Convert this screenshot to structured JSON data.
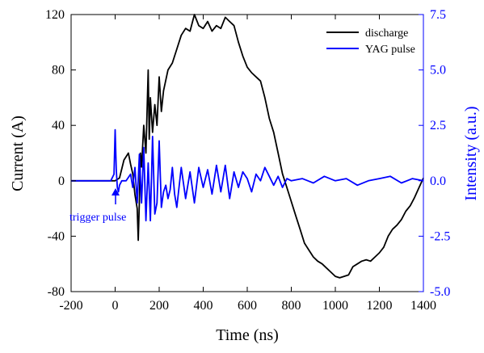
{
  "chart_data": {
    "type": "line",
    "title": "",
    "xlabel": "Time (ns)",
    "ylabel": "Current (A)",
    "y2label": "Intensity (a.u.)",
    "xlim": [
      -200,
      1400
    ],
    "ylim": [
      -80,
      120
    ],
    "y2lim": [
      -5.0,
      7.5
    ],
    "x_ticks": [
      -200,
      0,
      200,
      400,
      600,
      800,
      1000,
      1200,
      1400
    ],
    "x_tick_labels": [
      "-200",
      "0",
      "200",
      "400",
      "600",
      "800",
      "1000",
      "1200",
      "1400"
    ],
    "y_ticks": [
      -80,
      -40,
      0,
      40,
      80,
      120
    ],
    "y_tick_labels": [
      "-80",
      "-40",
      "0",
      "40",
      "80",
      "120"
    ],
    "y2_ticks": [
      -5.0,
      -2.5,
      0.0,
      2.5,
      5.0,
      7.5
    ],
    "y2_tick_labels": [
      "-5.0",
      "-2.5",
      "0.0",
      "2.5",
      "5.0",
      "7.5"
    ],
    "grid": false,
    "legend_position": "top-right",
    "colors": {
      "discharge": "#000000",
      "yag": "#0000ff",
      "axis": "#000000",
      "axis2": "#0000ff"
    },
    "series": [
      {
        "name": "discharge",
        "axis": "left",
        "x": [
          -200,
          -100,
          -20,
          0,
          20,
          40,
          60,
          70,
          80,
          90,
          100,
          105,
          110,
          115,
          120,
          130,
          140,
          150,
          155,
          160,
          170,
          180,
          190,
          200,
          210,
          220,
          240,
          260,
          280,
          300,
          320,
          340,
          360,
          380,
          400,
          420,
          440,
          460,
          480,
          500,
          520,
          540,
          560,
          580,
          600,
          620,
          640,
          660,
          680,
          700,
          720,
          740,
          760,
          780,
          800,
          820,
          840,
          860,
          880,
          900,
          920,
          940,
          960,
          980,
          1000,
          1020,
          1040,
          1060,
          1080,
          1100,
          1120,
          1140,
          1160,
          1180,
          1200,
          1220,
          1240,
          1260,
          1280,
          1300,
          1320,
          1340,
          1360,
          1380,
          1400
        ],
        "values": [
          0,
          0,
          0,
          0,
          2,
          15,
          20,
          12,
          5,
          -10,
          -20,
          -43,
          -15,
          20,
          10,
          40,
          20,
          80,
          30,
          60,
          35,
          55,
          40,
          75,
          50,
          65,
          80,
          85,
          95,
          105,
          110,
          108,
          120,
          112,
          110,
          115,
          108,
          112,
          110,
          118,
          115,
          112,
          100,
          90,
          82,
          78,
          75,
          72,
          60,
          45,
          35,
          20,
          5,
          -5,
          -15,
          -25,
          -35,
          -45,
          -50,
          -55,
          -58,
          -60,
          -63,
          -66,
          -69,
          -70,
          -69,
          -68,
          -62,
          -60,
          -58,
          -57,
          -58,
          -55,
          -52,
          -48,
          -40,
          -35,
          -32,
          -28,
          -22,
          -18,
          -12,
          -5,
          2
        ]
      },
      {
        "name": "YAG pulse",
        "axis": "right",
        "x": [
          -200,
          -100,
          -20,
          -5,
          0,
          5,
          10,
          15,
          20,
          30,
          50,
          70,
          80,
          90,
          100,
          110,
          120,
          130,
          140,
          150,
          160,
          170,
          180,
          190,
          200,
          210,
          220,
          230,
          240,
          250,
          260,
          270,
          280,
          300,
          320,
          340,
          360,
          380,
          400,
          420,
          440,
          460,
          480,
          500,
          520,
          540,
          560,
          580,
          600,
          620,
          640,
          660,
          680,
          700,
          720,
          740,
          760,
          780,
          800,
          850,
          900,
          950,
          1000,
          1050,
          1100,
          1150,
          1200,
          1250,
          1300,
          1350,
          1400
        ],
        "values": [
          0,
          0,
          0,
          0.3,
          2.3,
          0.5,
          -0.3,
          -0.5,
          -0.2,
          0,
          0,
          0.3,
          -0.3,
          0.6,
          -1.0,
          1.2,
          -1.0,
          1.5,
          -1.8,
          0.8,
          -1.8,
          2.0,
          -1.5,
          -1.0,
          1.8,
          -1.2,
          -0.5,
          -0.2,
          -0.8,
          -0.4,
          0.6,
          -0.6,
          -1.2,
          0.6,
          -0.8,
          0.4,
          -1.0,
          0.6,
          -0.3,
          0.5,
          -0.6,
          0.7,
          -0.5,
          0.7,
          -0.8,
          0.4,
          -0.3,
          0.4,
          0.1,
          -0.5,
          0.3,
          0.0,
          0.6,
          0.2,
          -0.2,
          0.2,
          -0.3,
          0.1,
          0.0,
          0.1,
          -0.1,
          0.2,
          0.0,
          0.1,
          -0.2,
          0.0,
          0.1,
          0.2,
          -0.1,
          0.1,
          0.0
        ]
      }
    ],
    "annotations": [
      {
        "text": "trigger pulse",
        "x": 0,
        "y": -0.8,
        "axis": "right",
        "color": "#0000ff"
      }
    ]
  }
}
